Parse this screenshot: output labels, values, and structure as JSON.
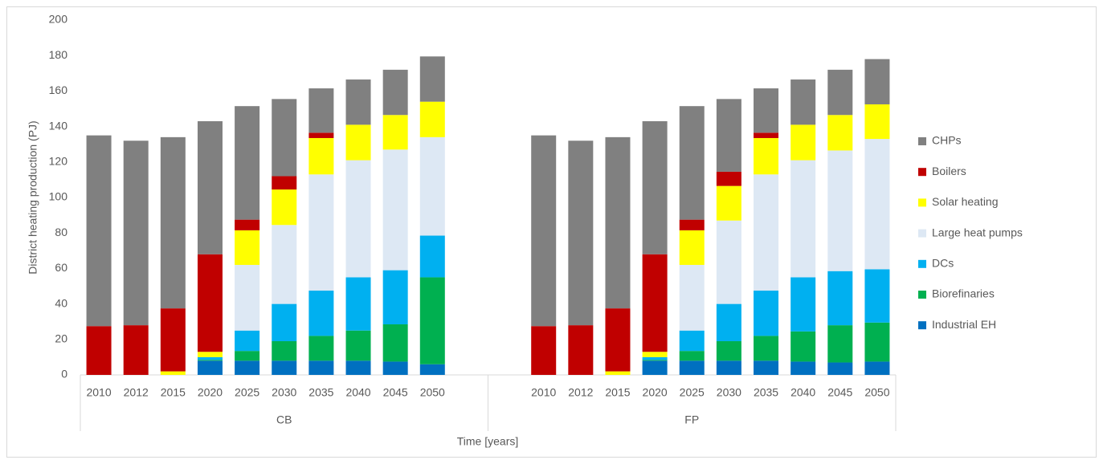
{
  "chart_data": {
    "type": "stacked_bar",
    "y_axis_label": "District heating production (PJ)",
    "x_axis_label": "Time [years]",
    "groups": [
      {
        "name": "CB",
        "categories": [
          "2010",
          "2012",
          "2015",
          "2020",
          "2025",
          "2030",
          "2035",
          "2040",
          "2045",
          "2050"
        ]
      },
      {
        "name": "FP",
        "categories": [
          "2010",
          "2012",
          "2015",
          "2020",
          "2025",
          "2030",
          "2035",
          "2040",
          "2045",
          "2050"
        ]
      }
    ],
    "ylim": [
      0,
      200
    ],
    "yticks": [
      0,
      20,
      40,
      60,
      80,
      100,
      120,
      140,
      160,
      180,
      200
    ],
    "series": [
      {
        "name": "Industrial EH",
        "color": "#0070c0",
        "values": [
          0,
          0,
          0,
          8,
          8,
          8,
          8,
          8,
          7.5,
          6,
          0,
          0,
          0,
          8,
          8,
          8,
          8,
          7.5,
          7,
          7.5
        ]
      },
      {
        "name": "Biorefinaries",
        "color": "#00b050",
        "values": [
          0,
          0,
          0,
          0.5,
          5.5,
          11,
          14,
          17,
          21,
          49,
          0,
          0,
          0,
          0.5,
          5.5,
          11,
          14,
          17,
          21,
          22
        ]
      },
      {
        "name": "DCs",
        "color": "#00b0f0",
        "values": [
          0,
          0,
          0,
          1.5,
          11.5,
          21,
          25.5,
          30,
          30.5,
          23.5,
          0,
          0,
          0,
          1.5,
          11.5,
          21,
          25.5,
          30.5,
          30.5,
          30
        ]
      },
      {
        "name": "Large heat pumps",
        "color": "#dde8f4",
        "values": [
          0,
          0,
          0,
          0,
          37,
          44.5,
          65.5,
          66,
          68,
          55.5,
          0,
          0,
          0,
          0,
          37,
          47,
          65.5,
          66,
          68,
          73.5
        ]
      },
      {
        "name": "Solar heating",
        "color": "#ffff00",
        "values": [
          0,
          0,
          2,
          3,
          19.5,
          20,
          20.5,
          20,
          19.5,
          20,
          0,
          0,
          2,
          3,
          19.5,
          19.5,
          20.5,
          20,
          20,
          19.5
        ]
      },
      {
        "name": "Boilers",
        "color": "#c00000",
        "values": [
          27.5,
          28,
          35.5,
          55,
          6,
          7.5,
          3,
          0,
          0,
          0,
          27.5,
          28,
          35.5,
          55,
          6,
          8,
          3,
          0,
          0,
          0
        ]
      },
      {
        "name": "CHPs",
        "color": "#808080",
        "values": [
          107.5,
          104,
          96.5,
          75,
          64,
          43.5,
          25,
          25.5,
          25.5,
          25.5,
          107.5,
          104,
          96.5,
          75,
          64,
          41,
          25,
          25.5,
          25.5,
          25.5
        ]
      }
    ]
  }
}
